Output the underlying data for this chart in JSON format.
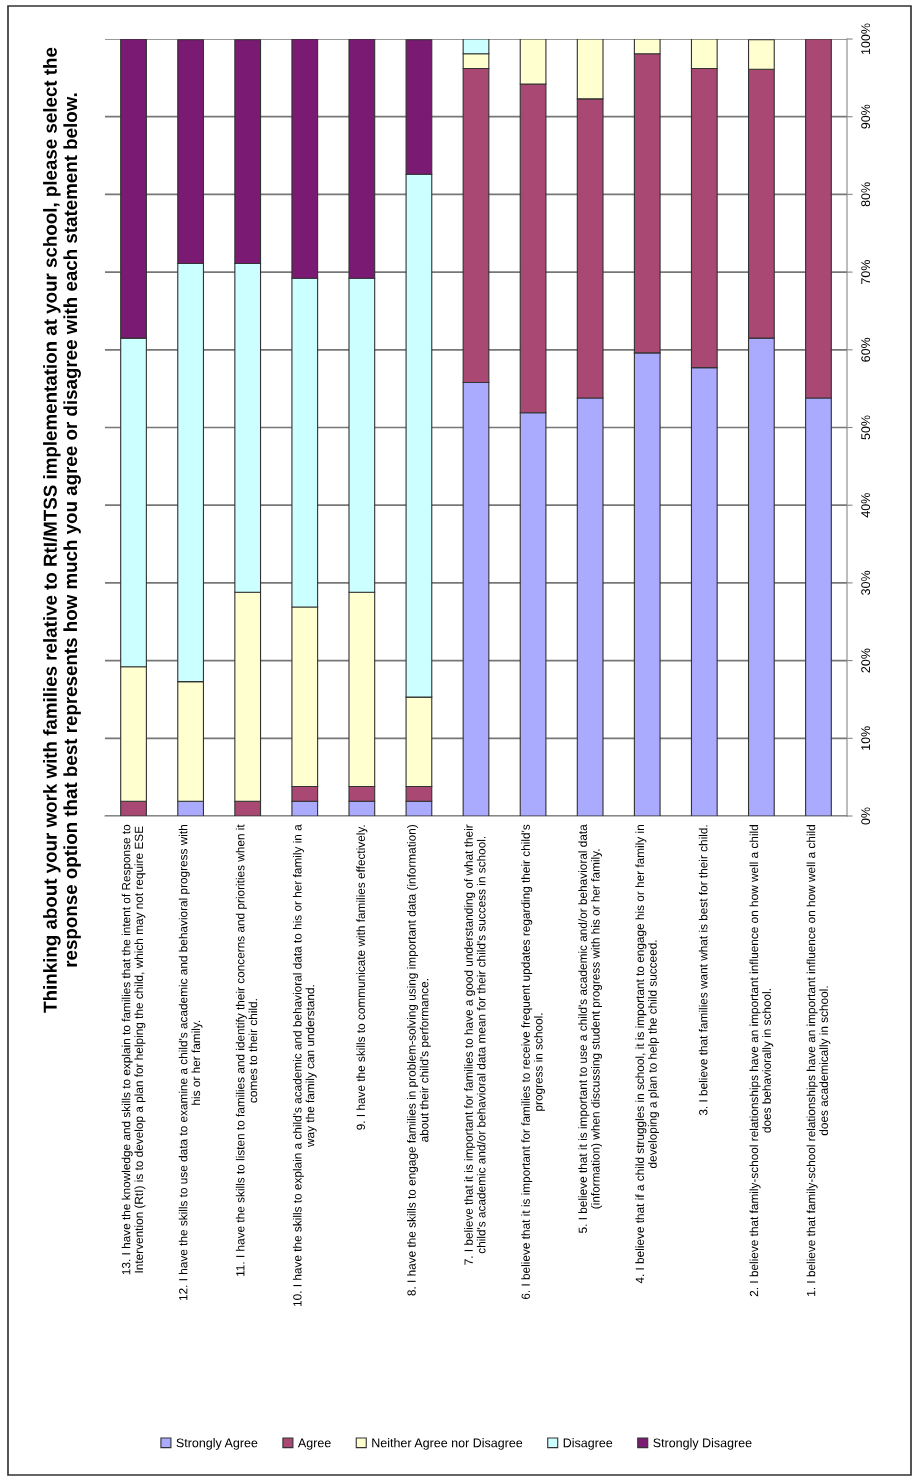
{
  "chart_data": {
    "type": "bar",
    "stacked": true,
    "title": "Thinking about your work with families relative to RtI/MTSS implementation at your school, please select the\nresponse option that best represents how much you agree or disagree with each statement below.",
    "categories": [
      "13. I have the knowledge and skills to explain to families that the intent of Response to\nIntervention (RtI) is to develop a plan for helping the child, which may not require ESE",
      "12. I have the skills to use data to examine a child's academic and behavioral progress with\nhis or her family.",
      "11. I have the skills to listen to families and identify their concerns and priorities when it\ncomes to their child.",
      "10. I have the skills to explain a child's academic and behavioral data to his or her family in a\nway the family can understand.",
      "9. I have the skills to communicate with families effectively.",
      "8. I have the skills to engage families in problem-solving using important data (information)\nabout their child's performance.",
      "7. I believe that it is important for families to have a good understanding of what their\nchild's academic and/or behavioral data mean for their child's success in school.",
      "6. I believe that it is important for families to receive frequent updates regarding their child's\nprogress in school.",
      "5. I believe that it is important to use a child's academic and/or behavioral data\n(information) when discussing student progress with his or her family.",
      "4. I believe that if a child struggles in school, it is important to engage his or her family in\ndeveloping a plan to help the child succeed.",
      "3. I believe that families want what is best for their child.",
      "2. I believe that family-school relationships have an important influence on how well a child\ndoes behaviorally in school.",
      "1. I believe that family-school relationships have an important influence on how well a child\ndoes academically in school."
    ],
    "series": [
      {
        "name": "Strongly Agree",
        "color": "#aaaaff",
        "values": [
          0,
          1.9,
          0,
          1.9,
          1.9,
          1.9,
          55.8,
          51.9,
          53.8,
          59.6,
          57.7,
          61.5,
          53.8
        ]
      },
      {
        "name": "Agree",
        "color": "#a94873",
        "values": [
          1.9,
          0,
          1.9,
          1.9,
          1.9,
          1.9,
          40.4,
          42.3,
          38.5,
          38.5,
          38.5,
          34.6,
          46.2
        ]
      },
      {
        "name": "Neither Agree nor Disagree",
        "color": "#ffffd0",
        "values": [
          17.3,
          15.4,
          26.9,
          23.1,
          25.0,
          11.5,
          1.9,
          5.8,
          7.7,
          1.9,
          3.8,
          3.8,
          0
        ]
      },
      {
        "name": "Disagree",
        "color": "#ccffff",
        "values": [
          42.3,
          53.8,
          42.3,
          42.3,
          40.4,
          67.3,
          1.9,
          0,
          0,
          0,
          0,
          0,
          0
        ]
      },
      {
        "name": "Strongly Disagree",
        "color": "#7a1a73",
        "values": [
          38.5,
          28.8,
          28.8,
          30.8,
          30.8,
          17.3,
          0,
          0,
          0,
          0,
          0,
          0,
          0
        ]
      }
    ],
    "ylim": [
      0,
      100
    ],
    "yticks": [
      {
        "value": 0,
        "label": "0%"
      },
      {
        "value": 10,
        "label": "10%"
      },
      {
        "value": 20,
        "label": "20%"
      },
      {
        "value": 30,
        "label": "30%"
      },
      {
        "value": 40,
        "label": "40%"
      },
      {
        "value": 50,
        "label": "50%"
      },
      {
        "value": 60,
        "label": "60%"
      },
      {
        "value": 70,
        "label": "70%"
      },
      {
        "value": 80,
        "label": "80%"
      },
      {
        "value": 90,
        "label": "90%"
      },
      {
        "value": 100,
        "label": "100%"
      }
    ],
    "grid": "y",
    "legend": "bottom"
  }
}
